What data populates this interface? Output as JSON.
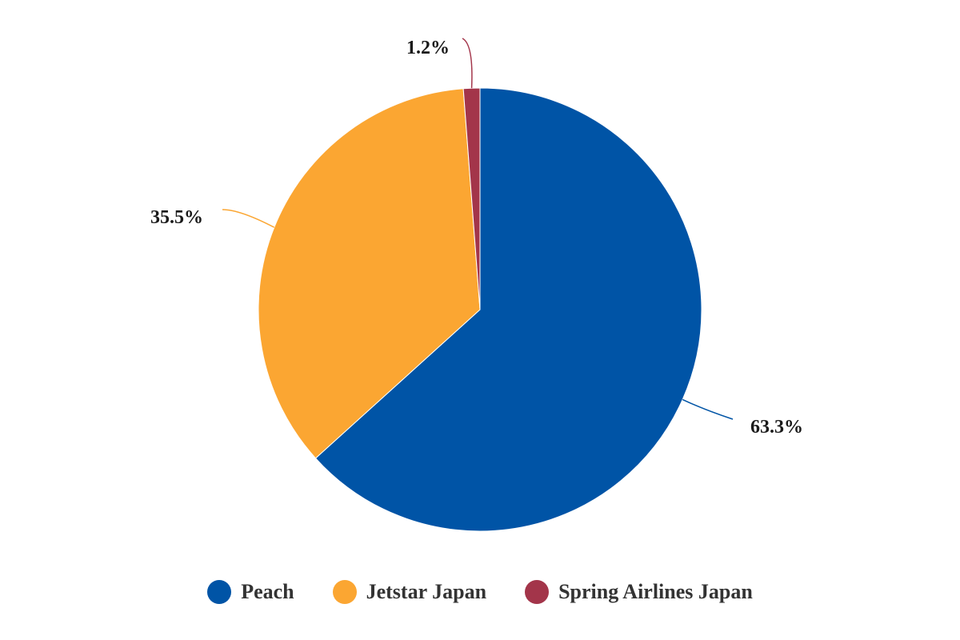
{
  "chart_data": {
    "type": "pie",
    "series": [
      {
        "name": "Peach",
        "value": 63.3,
        "label": "63.3%",
        "color": "#0054A6"
      },
      {
        "name": "Jetstar Japan",
        "value": 35.5,
        "label": "35.5%",
        "color": "#FBA632"
      },
      {
        "name": "Spring Airlines Japan",
        "value": 1.2,
        "label": "1.2%",
        "color": "#A3354A"
      }
    ],
    "legend": {
      "placement": "bottom-center",
      "items": [
        "Peach",
        "Jetstar Japan",
        "Spring Airlines Japan"
      ]
    }
  }
}
